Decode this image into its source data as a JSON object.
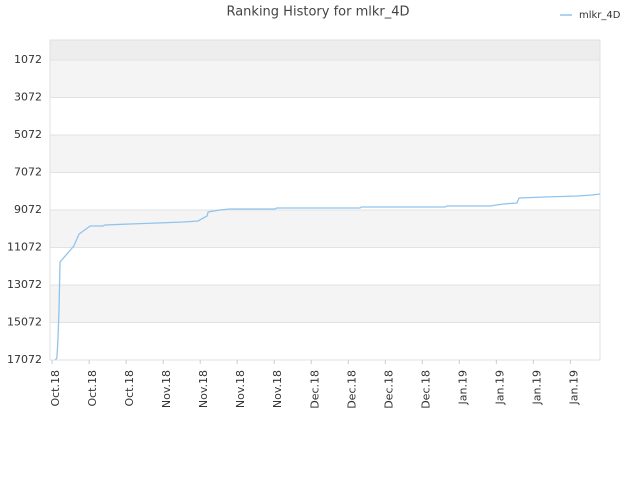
{
  "chart_data": {
    "type": "line",
    "title": "Ranking History for mlkr_4D",
    "x": [
      1,
      1.3,
      1.5,
      1.7,
      1.9,
      4.5,
      5.5,
      7.6,
      10,
      10.4,
      15.1,
      20.4,
      25.2,
      28,
      29.7,
      29.9,
      32.1,
      34,
      42.5,
      42.9,
      58.6,
      58.9,
      74.7,
      75,
      83.2,
      85.7,
      88.3,
      88.7,
      93.6,
      99.7,
      102.5,
      104
    ],
    "series": [
      {
        "name": "mlkr_4D",
        "color": "#90c4ee",
        "values": [
          17072,
          16965,
          16005,
          14405,
          11845,
          10992,
          10352,
          9925,
          9925,
          9872,
          9818,
          9765,
          9712,
          9658,
          9392,
          9178,
          9072,
          9018,
          9018,
          8965,
          8965,
          8912,
          8912,
          8858,
          8858,
          8752,
          8698,
          8432,
          8378,
          8325,
          8272,
          8218
        ]
      }
    ],
    "xlim": [
      0,
      104
    ],
    "xticks": [
      {
        "value": 0.4,
        "label": "Oct.18"
      },
      {
        "value": 7.4,
        "label": "Oct.18"
      },
      {
        "value": 14.4,
        "label": "Oct.18"
      },
      {
        "value": 21.4,
        "label": "Nov.18"
      },
      {
        "value": 28.4,
        "label": "Nov.18"
      },
      {
        "value": 35.4,
        "label": "Nov.18"
      },
      {
        "value": 42.4,
        "label": "Nov.18"
      },
      {
        "value": 49.4,
        "label": "Dec.18"
      },
      {
        "value": 56.4,
        "label": "Dec.18"
      },
      {
        "value": 63.4,
        "label": "Dec.18"
      },
      {
        "value": 70.4,
        "label": "Dec.18"
      },
      {
        "value": 77.4,
        "label": "Jan.19"
      },
      {
        "value": 84.4,
        "label": "Jan.19"
      },
      {
        "value": 91.4,
        "label": "Jan.19"
      },
      {
        "value": 98.4,
        "label": "Jan.19"
      }
    ],
    "ylim": [
      5,
      17072
    ],
    "yticks": [
      1072,
      3072,
      5072,
      7072,
      9072,
      11072,
      13072,
      15072,
      17072
    ],
    "y_inverted": true,
    "grid": true,
    "legend": "top-right"
  }
}
